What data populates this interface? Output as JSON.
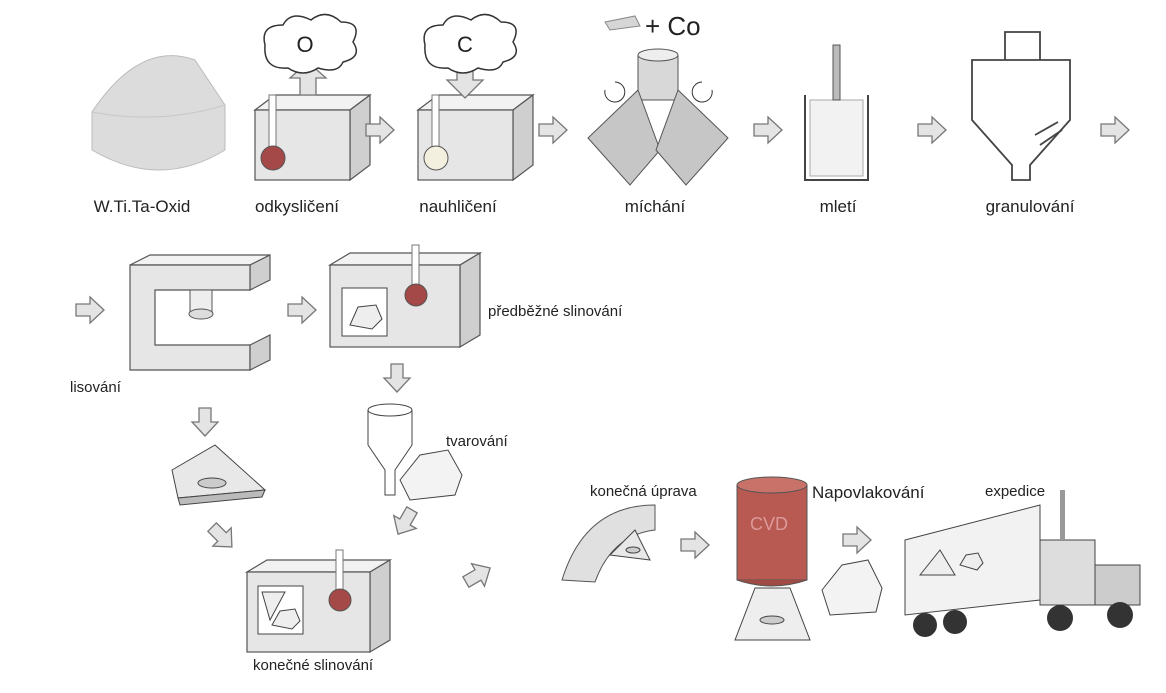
{
  "steps": [
    {
      "label": "W.Ti.Ta-Oxid"
    },
    {
      "label": "odkysličení"
    },
    {
      "label": "nauhličení"
    },
    {
      "label": "míchání"
    },
    {
      "label": "mletí"
    },
    {
      "label": "granulování"
    },
    {
      "label": "lisování"
    },
    {
      "label": "předběžné slinování"
    },
    {
      "label": "tvarování"
    },
    {
      "label": "konečné slinování"
    },
    {
      "label": "konečná úprava"
    },
    {
      "label": "Napovlakování"
    },
    {
      "label": "expedice"
    }
  ],
  "symbols": {
    "oxygen": "O",
    "carbon": "C",
    "cobalt": "+ Co",
    "cvd": "CVD"
  }
}
